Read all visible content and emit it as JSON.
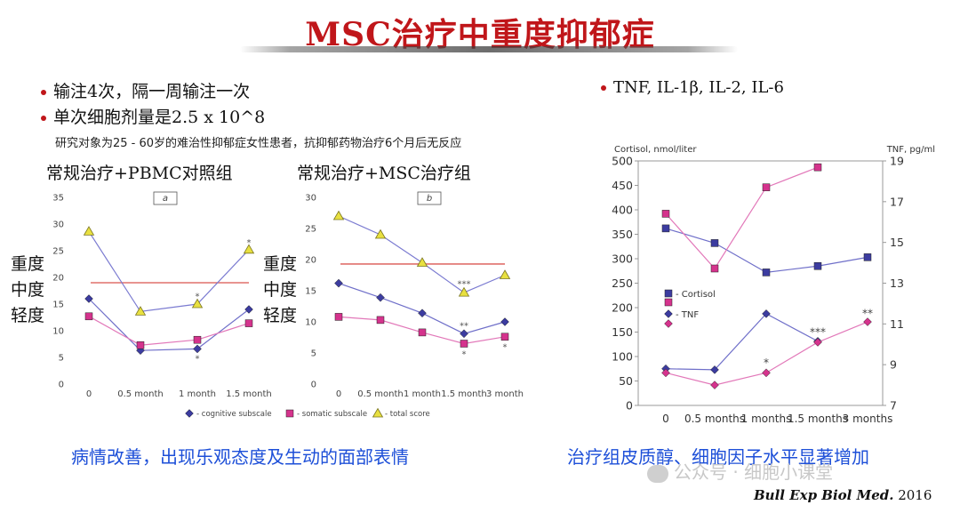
{
  "title": "MSC治疗中重度抑郁症",
  "bullets": {
    "b1": "输注4次，隔一周输注一次",
    "b2": "单次细胞剂量是2.5 x 10^8",
    "note": "研究对象为25 - 60岁的难治性抑郁症女性患者，抗抑郁药物治疗6个月后无反应",
    "right": "TNF, IL-1β, IL-2, IL-6"
  },
  "left_panel": {
    "chart_a_title": "常规治疗+PBMC对照组",
    "chart_b_title": "常规治疗+MSC治疗组",
    "severity": [
      "重度",
      "中度",
      "轻度"
    ],
    "legend": [
      "- cognitive subscale",
      "- somatic subscale",
      "- total score"
    ],
    "conclusion": "病情改善，出现乐观态度及生动的面部表情"
  },
  "right_panel": {
    "conclusion": "治疗组皮质醇、细胞因子水平显著增加"
  },
  "watermark": "公众号 · 细胞小课堂",
  "citation": {
    "journal": "Bull Exp Biol Med.",
    "year": " 2016"
  },
  "colors": {
    "title": "#c0161a",
    "navy": "#3c3ca0",
    "magenta": "#d5338d",
    "total": "#e8e040",
    "threshold": "#e0706b",
    "conclusion": "#1d4fd8"
  },
  "chart_data": [
    {
      "id": "a",
      "type": "line",
      "panel_label": "a",
      "categories": [
        "0",
        "0.5 month",
        "1 month",
        "1.5 month"
      ],
      "ylim": [
        0,
        35
      ],
      "yticks": [
        0,
        5,
        10,
        15,
        20,
        25,
        30,
        35
      ],
      "threshold": 19,
      "series": [
        {
          "name": "- cognitive subscale",
          "marker": "diamond",
          "values": [
            16,
            6.3,
            6.6,
            14
          ]
        },
        {
          "name": "- somatic subscale",
          "marker": "square",
          "values": [
            12.7,
            7.3,
            8.3,
            11.4
          ]
        },
        {
          "name": "- total score",
          "marker": "triangle",
          "values": [
            28.6,
            13.6,
            15,
            25.2
          ]
        }
      ],
      "annotations": [
        {
          "text": "*",
          "x_index": 2,
          "y": 16.6
        },
        {
          "text": "*",
          "x_index": 3,
          "y": 26.7
        },
        {
          "text": "*",
          "x_index": 2,
          "y": 4.9
        }
      ]
    },
    {
      "id": "b",
      "type": "line",
      "panel_label": "b",
      "categories": [
        "0",
        "0.5 month",
        "1 month",
        "1.5 month",
        "3 month"
      ],
      "ylim": [
        0,
        30
      ],
      "yticks": [
        0,
        5,
        10,
        15,
        20,
        25,
        30
      ],
      "threshold": 19.3,
      "series": [
        {
          "name": "- cognitive subscale",
          "marker": "diamond",
          "values": [
            16.2,
            13.9,
            11.4,
            8.1,
            10
          ]
        },
        {
          "name": "- somatic subscale",
          "marker": "square",
          "values": [
            10.8,
            10.3,
            8.3,
            6.5,
            7.6
          ]
        },
        {
          "name": "- total score",
          "marker": "triangle",
          "values": [
            27,
            24,
            19.5,
            14.7,
            17.5
          ]
        }
      ],
      "annotations": [
        {
          "text": "***",
          "x_index": 3,
          "y": 16.2
        },
        {
          "text": "**",
          "x_index": 3,
          "y": 9.5
        },
        {
          "text": "*",
          "x_index": 3,
          "y": 4.9
        },
        {
          "text": "*",
          "x_index": 4,
          "y": 6.1
        }
      ]
    },
    {
      "id": "c",
      "type": "line",
      "categories": [
        "0",
        "0.5 months",
        "1 months",
        "1.5 months",
        "3 months"
      ],
      "ylabel": "Cortisol, nmol/liter",
      "ylabel_right": "TNF, pg/ml",
      "ylim": [
        0,
        500
      ],
      "yticks": [
        0,
        50,
        100,
        150,
        200,
        250,
        300,
        350,
        400,
        450,
        500
      ],
      "ylim_right": [
        7,
        19
      ],
      "yticks_right": [
        7,
        9,
        11,
        13,
        15,
        17,
        19
      ],
      "legend": [
        "- Cortisol",
        "- TNF"
      ],
      "series": [
        {
          "name": "- Cortisol",
          "group": "control",
          "axis": "left",
          "color": "navy",
          "marker": "square",
          "values": [
            362,
            332,
            272,
            285,
            303
          ]
        },
        {
          "name": "- Cortisol",
          "group": "MSC",
          "axis": "left",
          "color": "magenta",
          "marker": "square",
          "values": [
            392,
            280,
            446,
            487,
            null
          ]
        },
        {
          "name": "- TNF",
          "group": "control",
          "axis": "right",
          "color": "navy",
          "marker": "diamond",
          "values": [
            8.8,
            8.75,
            11.5,
            10.15,
            null
          ]
        },
        {
          "name": "- TNF",
          "group": "MSC",
          "axis": "right",
          "color": "magenta",
          "marker": "diamond",
          "values": [
            8.6,
            8,
            8.6,
            10.1,
            11.1
          ]
        }
      ],
      "annotations": [
        {
          "text": "*",
          "x_index": 2,
          "y": 87
        },
        {
          "text": "***",
          "x_index": 3,
          "y": 150
        },
        {
          "text": "**",
          "x_index": 4,
          "y": 188
        }
      ]
    }
  ]
}
